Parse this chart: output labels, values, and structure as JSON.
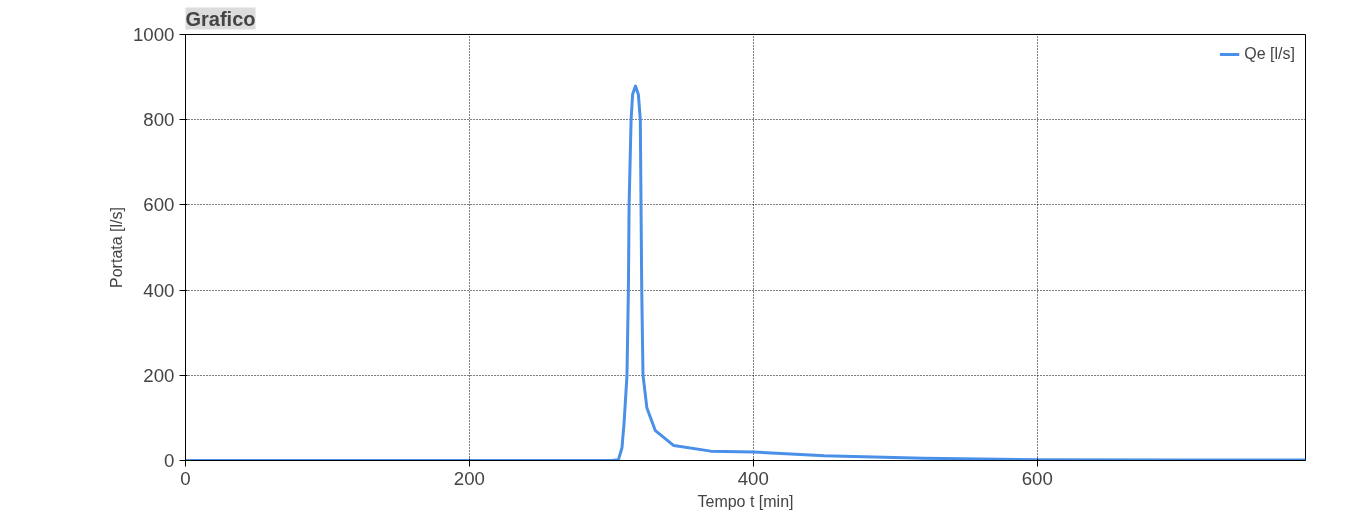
{
  "chart_data": {
    "type": "line",
    "title": "Grafico",
    "xlabel": "Tempo t [min]",
    "ylabel": "Portata [l/s]",
    "x": [
      0,
      100,
      200,
      300,
      305,
      307.5,
      309,
      311,
      312,
      312.5,
      313.9,
      315,
      317,
      319,
      320.4,
      320.9,
      321.4,
      322.3,
      325,
      331,
      344,
      370,
      400,
      450,
      520,
      600,
      700,
      789
    ],
    "series": [
      {
        "name": "Qe [l/s]",
        "color": "#4a90e8",
        "values": [
          0,
          0,
          0,
          0,
          2,
          30,
          90,
          200,
          400,
          600,
          800,
          860,
          879,
          860,
          800,
          600,
          400,
          200,
          124,
          70,
          35,
          22,
          20,
          11,
          5,
          2,
          1,
          1
        ]
      }
    ],
    "xlim": [
      0,
      789
    ],
    "ylim": [
      0,
      1000
    ],
    "xticks": [
      0,
      200,
      400,
      600
    ],
    "yticks": [
      0,
      200,
      400,
      600,
      800,
      1000
    ],
    "grid": true,
    "legend": "top right",
    "line_style": "solid",
    "marker": "none"
  }
}
